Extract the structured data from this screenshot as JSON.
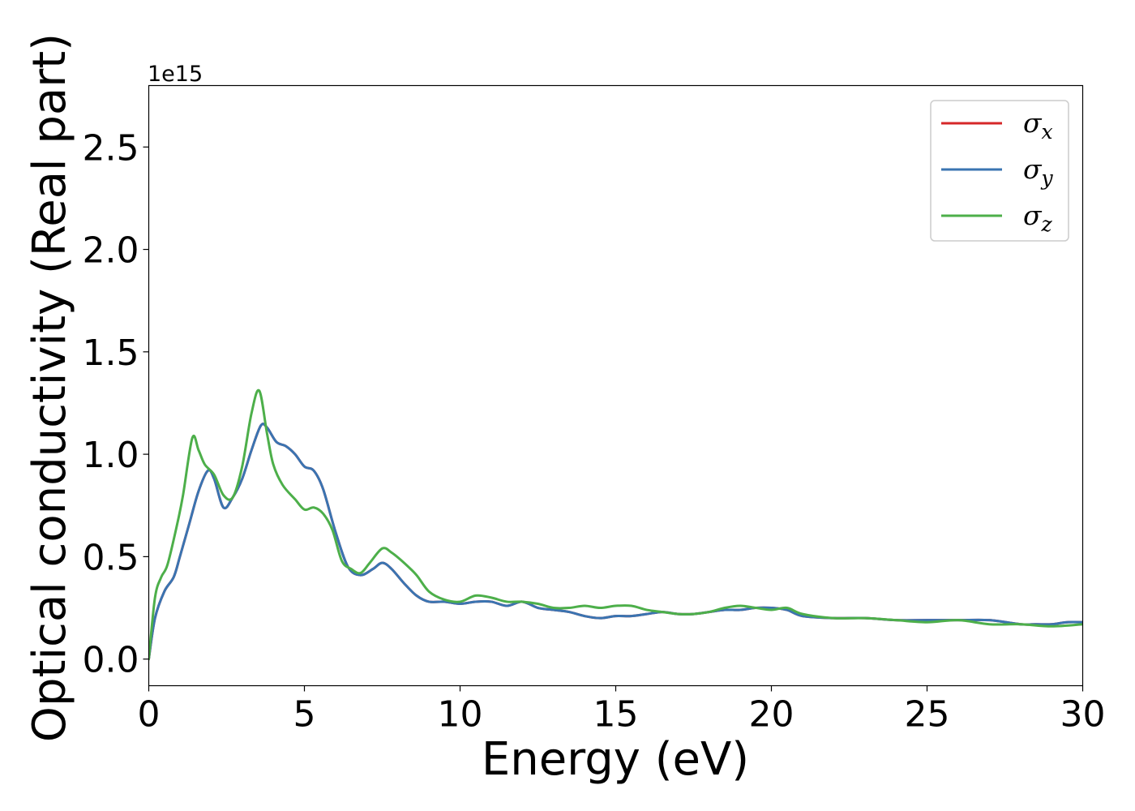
{
  "chart_data": {
    "type": "line",
    "title": "",
    "xlabel": "Energy (eV)",
    "ylabel": "Optical conductivity (Real part)",
    "y_offset_label": "1e15",
    "xlim": [
      0,
      30
    ],
    "ylim": [
      -0.13,
      2.8
    ],
    "grid": false,
    "legend_position": "top-right",
    "x_ticks": [
      0,
      5,
      10,
      15,
      20,
      25,
      30
    ],
    "x_tick_labels": [
      "0",
      "5",
      "10",
      "15",
      "20",
      "25",
      "30"
    ],
    "y_ticks": [
      0.0,
      0.5,
      1.0,
      1.5,
      2.0,
      2.5
    ],
    "y_tick_labels": [
      "0.0",
      "0.5",
      "1.0",
      "1.5",
      "2.0",
      "2.5"
    ],
    "series": [
      {
        "name": "σx",
        "name_base": "σ",
        "name_sub": "x",
        "color": "#d62728",
        "x": [
          0,
          0.2,
          0.5,
          0.8,
          1.0,
          1.3,
          1.6,
          1.9,
          2.1,
          2.4,
          2.7,
          3.0,
          3.3,
          3.6,
          3.8,
          4.1,
          4.4,
          4.7,
          5.0,
          5.3,
          5.6,
          6.0,
          6.4,
          6.8,
          7.2,
          7.5,
          7.8,
          8.2,
          8.6,
          9.0,
          9.5,
          10.0,
          10.5,
          11.0,
          11.5,
          12.0,
          12.5,
          13.0,
          13.5,
          14.0,
          14.5,
          15.0,
          15.5,
          16.0,
          16.5,
          17.0,
          17.5,
          18.0,
          18.5,
          19.0,
          19.5,
          20.0,
          20.5,
          21.0,
          22.0,
          23.0,
          24.0,
          25.0,
          26.0,
          27.0,
          28.0,
          28.5,
          29.0,
          29.5,
          30.0
        ],
        "y": [
          0.0,
          0.2,
          0.33,
          0.4,
          0.5,
          0.66,
          0.82,
          0.92,
          0.88,
          0.74,
          0.79,
          0.88,
          1.02,
          1.14,
          1.13,
          1.06,
          1.04,
          1.0,
          0.94,
          0.92,
          0.83,
          0.62,
          0.45,
          0.41,
          0.44,
          0.47,
          0.44,
          0.37,
          0.31,
          0.28,
          0.28,
          0.27,
          0.28,
          0.28,
          0.26,
          0.28,
          0.25,
          0.24,
          0.23,
          0.21,
          0.2,
          0.21,
          0.21,
          0.22,
          0.23,
          0.22,
          0.22,
          0.23,
          0.24,
          0.24,
          0.25,
          0.25,
          0.24,
          0.21,
          0.2,
          0.2,
          0.19,
          0.19,
          0.19,
          0.19,
          0.17,
          0.17,
          0.17,
          0.18,
          0.18
        ]
      },
      {
        "name": "σy",
        "name_base": "σ",
        "name_sub": "y",
        "color": "#3a74b1",
        "x": [
          0,
          0.2,
          0.5,
          0.8,
          1.0,
          1.3,
          1.6,
          1.9,
          2.1,
          2.4,
          2.7,
          3.0,
          3.3,
          3.6,
          3.8,
          4.1,
          4.4,
          4.7,
          5.0,
          5.3,
          5.6,
          6.0,
          6.4,
          6.8,
          7.2,
          7.5,
          7.8,
          8.2,
          8.6,
          9.0,
          9.5,
          10.0,
          10.5,
          11.0,
          11.5,
          12.0,
          12.5,
          13.0,
          13.5,
          14.0,
          14.5,
          15.0,
          15.5,
          16.0,
          16.5,
          17.0,
          17.5,
          18.0,
          18.5,
          19.0,
          19.5,
          20.0,
          20.5,
          21.0,
          22.0,
          23.0,
          24.0,
          25.0,
          26.0,
          27.0,
          28.0,
          28.5,
          29.0,
          29.5,
          30.0
        ],
        "y": [
          0.0,
          0.2,
          0.33,
          0.4,
          0.5,
          0.66,
          0.82,
          0.92,
          0.88,
          0.74,
          0.79,
          0.88,
          1.02,
          1.14,
          1.13,
          1.06,
          1.04,
          1.0,
          0.94,
          0.92,
          0.83,
          0.62,
          0.45,
          0.41,
          0.44,
          0.47,
          0.44,
          0.37,
          0.31,
          0.28,
          0.28,
          0.27,
          0.28,
          0.28,
          0.26,
          0.28,
          0.25,
          0.24,
          0.23,
          0.21,
          0.2,
          0.21,
          0.21,
          0.22,
          0.23,
          0.22,
          0.22,
          0.23,
          0.24,
          0.24,
          0.25,
          0.25,
          0.24,
          0.21,
          0.2,
          0.2,
          0.19,
          0.19,
          0.19,
          0.19,
          0.17,
          0.17,
          0.17,
          0.18,
          0.18
        ]
      },
      {
        "name": "σz",
        "name_base": "σ",
        "name_sub": "z",
        "color": "#4daf4a",
        "x": [
          0,
          0.2,
          0.4,
          0.6,
          0.9,
          1.1,
          1.4,
          1.6,
          1.8,
          2.1,
          2.4,
          2.7,
          3.0,
          3.3,
          3.55,
          3.8,
          4.0,
          4.3,
          4.7,
          5.0,
          5.3,
          5.6,
          5.9,
          6.2,
          6.5,
          6.8,
          7.1,
          7.5,
          7.8,
          8.2,
          8.6,
          9.0,
          9.5,
          10.0,
          10.5,
          11.0,
          11.5,
          12.0,
          12.5,
          13.0,
          13.5,
          14.0,
          14.5,
          15.0,
          15.5,
          16.0,
          16.5,
          17.0,
          17.5,
          18.0,
          18.5,
          19.0,
          19.5,
          20.0,
          20.5,
          21.0,
          22.0,
          23.0,
          24.0,
          25.0,
          26.0,
          27.0,
          28.0,
          29.0,
          30.0
        ],
        "y": [
          0.0,
          0.3,
          0.4,
          0.46,
          0.65,
          0.8,
          1.08,
          1.02,
          0.95,
          0.9,
          0.8,
          0.79,
          0.94,
          1.2,
          1.31,
          1.1,
          0.95,
          0.85,
          0.78,
          0.73,
          0.74,
          0.71,
          0.63,
          0.48,
          0.44,
          0.42,
          0.47,
          0.54,
          0.52,
          0.47,
          0.41,
          0.33,
          0.29,
          0.28,
          0.31,
          0.3,
          0.28,
          0.28,
          0.27,
          0.25,
          0.25,
          0.26,
          0.25,
          0.26,
          0.26,
          0.24,
          0.23,
          0.22,
          0.22,
          0.23,
          0.25,
          0.26,
          0.25,
          0.24,
          0.25,
          0.22,
          0.2,
          0.2,
          0.19,
          0.18,
          0.19,
          0.17,
          0.17,
          0.16,
          0.17
        ]
      }
    ]
  }
}
